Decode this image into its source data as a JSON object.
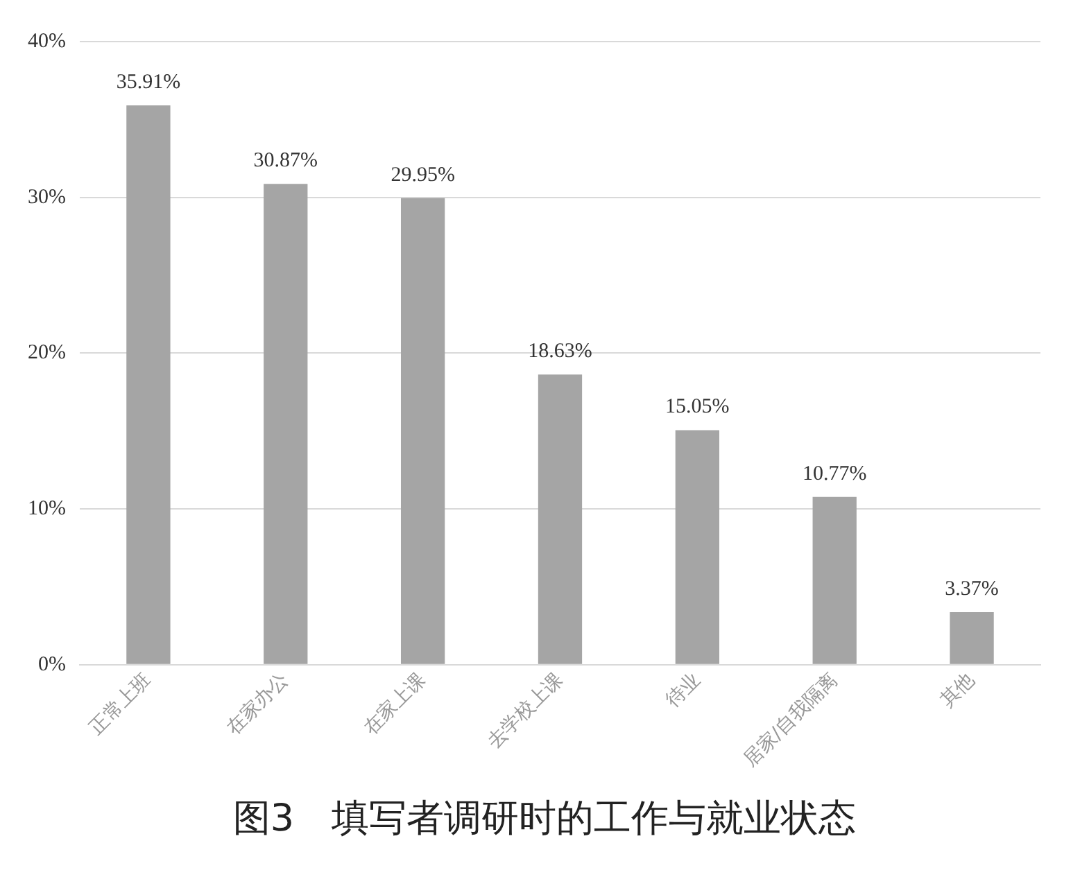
{
  "chart_data": {
    "type": "bar",
    "title": "图3　填写者调研时的工作与就业状态",
    "categories": [
      "正常上班",
      "在家办公",
      "在家上课",
      "去学校上课",
      "待业",
      "居家/自我隔离",
      "其他"
    ],
    "values": [
      35.91,
      30.87,
      29.95,
      18.63,
      15.05,
      10.77,
      3.37
    ],
    "value_labels": [
      "35.91%",
      "30.87%",
      "29.95%",
      "18.63%",
      "15.05%",
      "10.77%",
      "3.37%"
    ],
    "color": "#a5a5a5",
    "ylim": [
      0,
      40
    ],
    "yticks": [
      {
        "value": 0,
        "label": "0%"
      },
      {
        "value": 10,
        "label": "10%"
      },
      {
        "value": 20,
        "label": "20%"
      },
      {
        "value": 30,
        "label": "30%"
      },
      {
        "value": 40,
        "label": "40%"
      }
    ],
    "grid": "y",
    "legend": false
  }
}
